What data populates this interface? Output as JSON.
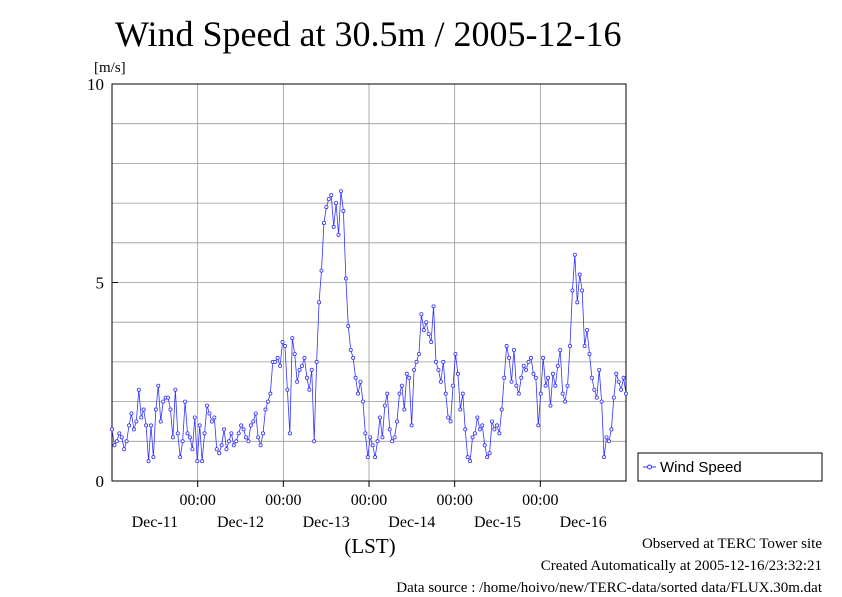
{
  "chart_data": {
    "type": "line",
    "title": "Wind Speed at 30.5m / 2005-12-16",
    "ylabel": "[m/s]",
    "xlabel": "(LST)",
    "ylim": [
      0,
      10
    ],
    "ytick_labels": [
      "0",
      "5",
      "10"
    ],
    "yticks": [
      0,
      5,
      10
    ],
    "xlim_hours": [
      -168,
      -24
    ],
    "xticks_hours": [
      -144,
      -120,
      -96,
      -72,
      -48
    ],
    "xtick_labels": [
      "00:00",
      "00:00",
      "00:00",
      "00:00",
      "00:00"
    ],
    "day_labels": [
      "Dec-11",
      "Dec-12",
      "Dec-13",
      "Dec-14",
      "Dec-15",
      "Dec-16"
    ],
    "grid": true,
    "legend": "right",
    "series": [
      {
        "name": "Wind Speed",
        "color": "#3333ff",
        "values": [
          1.3,
          0.9,
          1.0,
          1.2,
          1.1,
          0.8,
          1.0,
          1.4,
          1.7,
          1.3,
          1.5,
          2.3,
          1.6,
          1.8,
          1.4,
          0.5,
          1.4,
          0.6,
          1.8,
          2.4,
          1.5,
          2.0,
          2.1,
          2.1,
          1.8,
          1.1,
          2.3,
          1.2,
          0.6,
          1.0,
          2.0,
          1.2,
          1.1,
          0.8,
          1.6,
          0.5,
          1.4,
          0.5,
          1.2,
          1.9,
          1.7,
          1.5,
          1.6,
          0.8,
          0.7,
          0.9,
          1.3,
          0.8,
          1.0,
          1.2,
          0.9,
          1.0,
          1.2,
          1.4,
          1.3,
          1.1,
          1.0,
          1.4,
          1.5,
          1.7,
          1.1,
          0.9,
          1.2,
          1.8,
          2.0,
          2.2,
          3.0,
          3.0,
          3.1,
          2.9,
          3.5,
          3.4,
          2.3,
          1.2,
          3.6,
          3.2,
          2.5,
          2.8,
          2.9,
          3.1,
          2.6,
          2.3,
          2.8,
          1.0,
          3.0,
          4.5,
          5.3,
          6.5,
          6.9,
          7.1,
          7.2,
          6.4,
          7.0,
          6.2,
          7.3,
          6.8,
          5.1,
          3.9,
          3.3,
          3.1,
          2.6,
          2.2,
          2.5,
          2.0,
          1.2,
          0.6,
          1.1,
          0.9,
          0.6,
          1.0,
          1.6,
          1.1,
          1.9,
          2.2,
          1.3,
          1.0,
          1.1,
          1.5,
          2.2,
          2.4,
          1.8,
          2.7,
          2.6,
          1.4,
          2.8,
          3.0,
          3.2,
          4.2,
          3.8,
          4.0,
          3.7,
          3.5,
          4.4,
          3.0,
          2.8,
          2.5,
          3.0,
          2.2,
          1.6,
          1.5,
          2.4,
          3.2,
          2.7,
          1.8,
          2.2,
          1.3,
          0.6,
          0.5,
          1.1,
          1.2,
          1.6,
          1.3,
          1.4,
          0.9,
          0.6,
          0.7,
          1.5,
          1.3,
          1.4,
          1.2,
          1.8,
          2.6,
          3.4,
          3.1,
          2.5,
          3.3,
          2.4,
          2.2,
          2.6,
          2.9,
          2.8,
          3.0,
          3.1,
          2.7,
          2.6,
          1.4,
          2.2,
          3.1,
          2.4,
          2.6,
          1.9,
          2.7,
          2.4,
          2.9,
          3.3,
          2.2,
          2.0,
          2.4,
          3.4,
          4.8,
          5.7,
          4.5,
          5.2,
          4.8,
          3.4,
          3.8,
          3.2,
          2.6,
          2.3,
          2.1,
          2.8,
          2.0,
          0.6,
          1.1,
          1.0,
          1.3,
          2.1,
          2.7,
          2.5,
          2.3,
          2.6,
          2.2
        ]
      }
    ]
  },
  "footer": {
    "observed": "Observed at TERC Tower site",
    "created": "Created Automatically at 2005-12-16/23:32:21",
    "source": "Data source : /home/hoivo/new/TERC-data/sorted  data/FLUX.30m.dat"
  }
}
